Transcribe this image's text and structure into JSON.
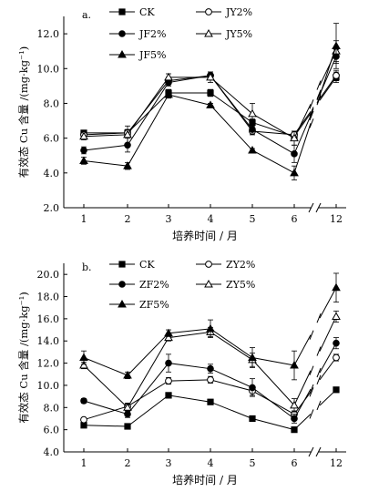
{
  "chart_data": [
    {
      "type": "line",
      "panel_label": "a.",
      "ylabel": "有效态 Cu 含量 /(mg·kg⁻¹)",
      "xlabel": "培养时间 / 月",
      "categories": [
        "1",
        "2",
        "3",
        "4",
        "5",
        "6",
        "12"
      ],
      "ylim": [
        2.0,
        13.0
      ],
      "yticks": [
        "2.0",
        "4.0",
        "6.0",
        "8.0",
        "10.0",
        "12.0"
      ],
      "axis_break": "//",
      "series": [
        {
          "name": "CK",
          "marker": "square-filled",
          "values": [
            6.3,
            6.3,
            8.6,
            8.6,
            6.9,
            6.1,
            9.5
          ],
          "errors": [
            0.1,
            0.1,
            0.2,
            0.2,
            0.2,
            0.2,
            0.3
          ]
        },
        {
          "name": "JY2%",
          "marker": "circle-open",
          "values": [
            6.2,
            6.3,
            9.3,
            9.6,
            6.4,
            6.2,
            9.6
          ],
          "errors": [
            0.2,
            0.2,
            0.2,
            0.2,
            0.2,
            0.2,
            0.3
          ]
        },
        {
          "name": "JF2%",
          "marker": "circle-filled",
          "values": [
            5.3,
            5.6,
            9.2,
            9.6,
            6.5,
            5.1,
            10.7
          ],
          "errors": [
            0.2,
            0.4,
            0.2,
            0.2,
            0.3,
            0.5,
            0.4
          ]
        },
        {
          "name": "JY5%",
          "marker": "triangle-open",
          "values": [
            6.1,
            6.2,
            9.5,
            9.5,
            7.4,
            6.0,
            11.0
          ],
          "errors": [
            0.2,
            0.5,
            0.2,
            0.3,
            0.6,
            0.4,
            0.6
          ]
        },
        {
          "name": "JF5%",
          "marker": "triangle-filled",
          "values": [
            4.7,
            4.4,
            8.5,
            7.9,
            5.3,
            4.0,
            11.3
          ],
          "errors": [
            0.2,
            0.2,
            0.2,
            0.1,
            0.1,
            0.4,
            1.3
          ]
        }
      ]
    },
    {
      "type": "line",
      "panel_label": "b.",
      "ylabel": "有效态 Cu 含量 /(mg·kg⁻¹)",
      "xlabel": "培养时间 / 月",
      "categories": [
        "1",
        "2",
        "3",
        "4",
        "5",
        "6",
        "12"
      ],
      "ylim": [
        4.0,
        21.0
      ],
      "yticks": [
        "4.0",
        "6.0",
        "8.0",
        "10.0",
        "12.0",
        "14.0",
        "16.0",
        "18.0",
        "20.0"
      ],
      "axis_break": "//",
      "series": [
        {
          "name": "CK",
          "marker": "square-filled",
          "values": [
            6.4,
            6.3,
            9.1,
            8.5,
            7.0,
            6.0,
            9.6
          ],
          "errors": [
            0.1,
            0.2,
            0.2,
            0.2,
            0.1,
            0.2,
            0.2
          ]
        },
        {
          "name": "ZY2%",
          "marker": "circle-open",
          "values": [
            6.9,
            8.1,
            10.4,
            10.5,
            9.5,
            7.4,
            12.5
          ],
          "errors": [
            0.1,
            0.3,
            0.3,
            0.3,
            0.4,
            0.3,
            0.3
          ]
        },
        {
          "name": "ZF2%",
          "marker": "circle-filled",
          "values": [
            8.6,
            7.4,
            12.0,
            11.5,
            9.8,
            7.0,
            13.8
          ],
          "errors": [
            0.2,
            0.3,
            0.8,
            0.4,
            0.8,
            0.4,
            0.5
          ]
        },
        {
          "name": "ZY5%",
          "marker": "triangle-open",
          "values": [
            11.8,
            8.0,
            14.3,
            14.8,
            12.3,
            8.2,
            16.2
          ],
          "errors": [
            0.3,
            0.3,
            0.3,
            0.4,
            0.6,
            0.6,
            0.5
          ]
        },
        {
          "name": "ZF5%",
          "marker": "triangle-filled",
          "values": [
            12.5,
            10.9,
            14.7,
            15.1,
            12.5,
            11.8,
            18.8
          ],
          "errors": [
            0.6,
            0.3,
            0.3,
            0.8,
            0.9,
            1.3,
            1.3
          ]
        }
      ]
    }
  ]
}
